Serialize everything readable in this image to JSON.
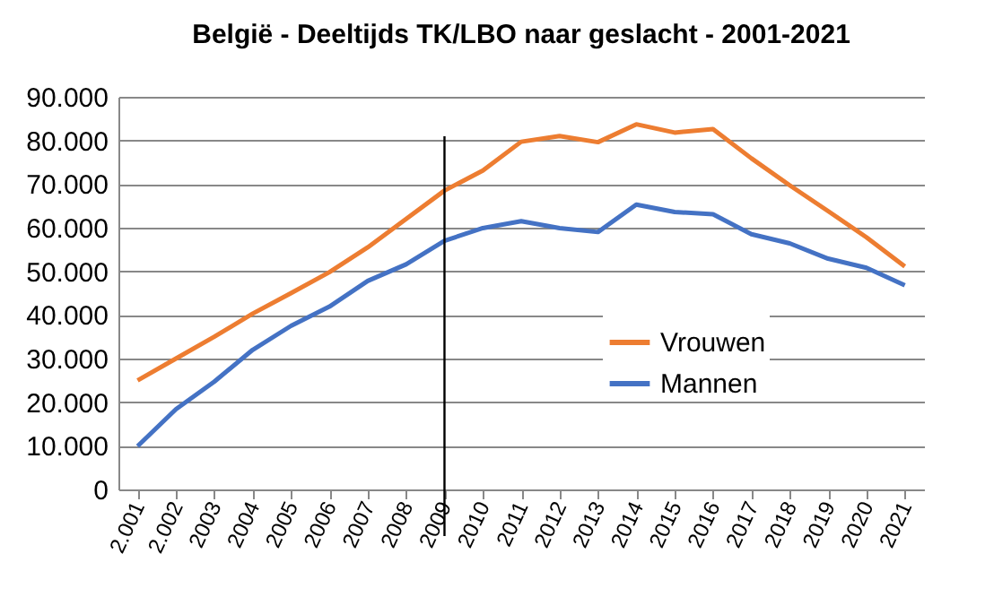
{
  "chart_data": {
    "type": "line",
    "title": "België - Deeltijds  TK/LBO naar geslacht - 2001-2021",
    "categories": [
      "2.001",
      "2.002",
      "2003",
      "2004",
      "2005",
      "2006",
      "2007",
      "2008",
      "2009",
      "2010",
      "2011",
      "2012",
      "2013",
      "2014",
      "2015",
      "2016",
      "2017",
      "2018",
      "2019",
      "2020",
      "2021"
    ],
    "series": [
      {
        "name": "Vrouwen",
        "color": "#ed7d31",
        "values": [
          25000,
          30000,
          35000,
          40300,
          45000,
          49800,
          55500,
          62000,
          68500,
          73100,
          79700,
          81000,
          79600,
          83700,
          81800,
          82600,
          75900,
          69700,
          63800,
          57800,
          51100
        ]
      },
      {
        "name": "Mannen",
        "color": "#4472c4",
        "values": [
          9900,
          18400,
          24700,
          32000,
          37500,
          41900,
          47800,
          51600,
          57000,
          59900,
          61500,
          59900,
          59000,
          65300,
          63600,
          63100,
          58500,
          56400,
          52900,
          50800,
          46800
        ]
      }
    ],
    "ylim": [
      0,
      90000
    ],
    "yticks": [
      {
        "value": 0,
        "label": "0"
      },
      {
        "value": 10000,
        "label": "10.000"
      },
      {
        "value": 20000,
        "label": "20.000"
      },
      {
        "value": 30000,
        "label": "30.000"
      },
      {
        "value": 40000,
        "label": "40.000"
      },
      {
        "value": 50000,
        "label": "50.000"
      },
      {
        "value": 60000,
        "label": "60.000"
      },
      {
        "value": 70000,
        "label": "70.000"
      },
      {
        "value": 80000,
        "label": "80.000"
      },
      {
        "value": 90000,
        "label": "90.000"
      }
    ],
    "grid": "y",
    "legend": "bottom right",
    "marker": "none",
    "line_style": "solid",
    "ref_lines": [
      {
        "axis": "x",
        "value": "2009",
        "color": "#000000"
      }
    ]
  }
}
